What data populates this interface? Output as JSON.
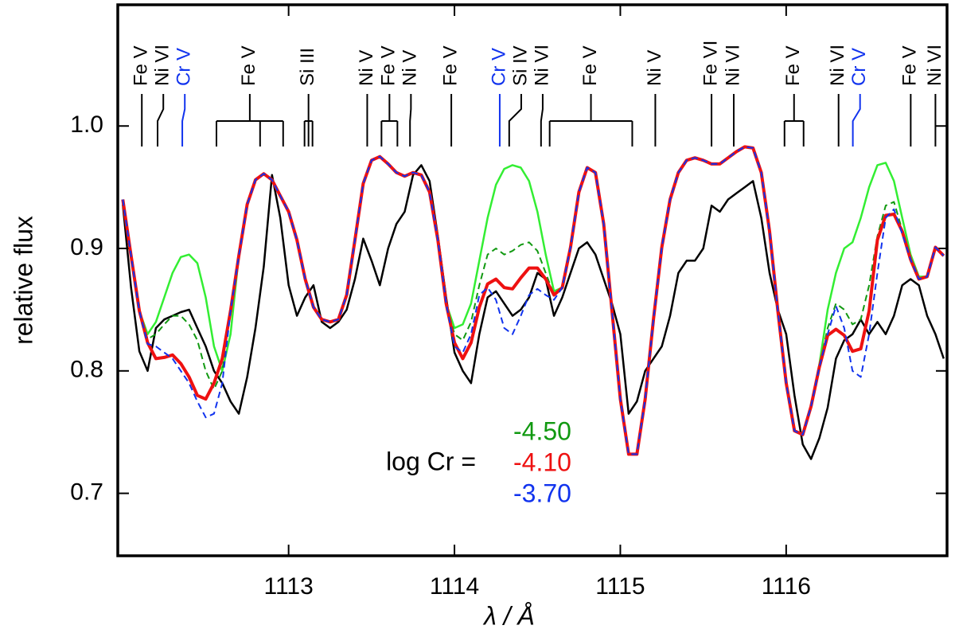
{
  "chart_data": {
    "type": "line",
    "xlabel": "λ / Å",
    "ylabel": "relative flux",
    "legend_title": "log Cr =",
    "xlim": [
      1111.97,
      1116.97
    ],
    "ylim": [
      0.649,
      1.099
    ],
    "xticks": [
      1113,
      1114,
      1115,
      1116
    ],
    "yticks": [
      0.7,
      0.8,
      0.9,
      {
        "value": 1,
        "label": "1.0"
      }
    ],
    "grid": false,
    "x": [
      1112.0,
      1112.05,
      1112.1,
      1112.15,
      1112.2,
      1112.25,
      1112.3,
      1112.35,
      1112.4,
      1112.45,
      1112.5,
      1112.55,
      1112.6,
      1112.65,
      1112.7,
      1112.75,
      1112.8,
      1112.85,
      1112.9,
      1112.95,
      1113.0,
      1113.05,
      1113.1,
      1113.15,
      1113.2,
      1113.25,
      1113.3,
      1113.35,
      1113.4,
      1113.45,
      1113.5,
      1113.55,
      1113.6,
      1113.65,
      1113.7,
      1113.75,
      1113.8,
      1113.85,
      1113.9,
      1113.95,
      1114.0,
      1114.05,
      1114.1,
      1114.15,
      1114.2,
      1114.25,
      1114.3,
      1114.35,
      1114.4,
      1114.45,
      1114.5,
      1114.55,
      1114.6,
      1114.65,
      1114.7,
      1114.75,
      1114.8,
      1114.85,
      1114.9,
      1114.95,
      1115.0,
      1115.05,
      1115.1,
      1115.15,
      1115.2,
      1115.25,
      1115.3,
      1115.35,
      1115.4,
      1115.45,
      1115.5,
      1115.55,
      1115.6,
      1115.65,
      1115.7,
      1115.75,
      1115.8,
      1115.85,
      1115.9,
      1115.95,
      1116.0,
      1116.05,
      1116.1,
      1116.15,
      1116.2,
      1116.25,
      1116.3,
      1116.35,
      1116.4,
      1116.45,
      1116.5,
      1116.55,
      1116.6,
      1116.65,
      1116.7,
      1116.75,
      1116.8,
      1116.85,
      1116.9,
      1116.95
    ],
    "series": [
      {
        "color": "#000000",
        "width": 2.5,
        "dashed": false,
        "values": [
          0.936,
          0.868,
          0.816,
          0.8,
          0.835,
          0.842,
          0.845,
          0.848,
          0.85,
          0.835,
          0.82,
          0.8,
          0.79,
          0.775,
          0.765,
          0.795,
          0.835,
          0.885,
          0.96,
          0.925,
          0.87,
          0.845,
          0.86,
          0.87,
          0.84,
          0.835,
          0.84,
          0.85,
          0.875,
          0.908,
          0.89,
          0.87,
          0.9,
          0.92,
          0.93,
          0.96,
          0.968,
          0.955,
          0.91,
          0.86,
          0.815,
          0.8,
          0.79,
          0.83,
          0.86,
          0.865,
          0.855,
          0.845,
          0.85,
          0.86,
          0.88,
          0.875,
          0.845,
          0.86,
          0.88,
          0.9,
          0.905,
          0.895,
          0.875,
          0.855,
          0.83,
          0.765,
          0.775,
          0.8,
          0.81,
          0.82,
          0.845,
          0.88,
          0.89,
          0.89,
          0.9,
          0.935,
          0.93,
          0.94,
          0.945,
          0.95,
          0.955,
          0.925,
          0.88,
          0.85,
          0.83,
          0.78,
          0.74,
          0.728,
          0.745,
          0.77,
          0.81,
          0.825,
          0.83,
          0.842,
          0.83,
          0.84,
          0.83,
          0.845,
          0.87,
          0.875,
          0.87,
          0.845,
          0.83,
          0.81
        ]
      },
      {
        "color": "#33ee33",
        "width": 2.5,
        "dashed": false,
        "values": [
          0.94,
          0.894,
          0.849,
          0.83,
          0.84,
          0.86,
          0.88,
          0.893,
          0.895,
          0.888,
          0.86,
          0.82,
          0.8,
          0.83,
          0.894,
          0.936,
          0.956,
          0.961,
          0.956,
          0.943,
          0.93,
          0.907,
          0.875,
          0.852,
          0.842,
          0.84,
          0.842,
          0.862,
          0.907,
          0.953,
          0.972,
          0.975,
          0.969,
          0.962,
          0.959,
          0.962,
          0.96,
          0.946,
          0.907,
          0.855,
          0.835,
          0.838,
          0.855,
          0.89,
          0.925,
          0.952,
          0.965,
          0.968,
          0.966,
          0.955,
          0.93,
          0.895,
          0.865,
          0.868,
          0.901,
          0.946,
          0.966,
          0.962,
          0.92,
          0.849,
          0.777,
          0.732,
          0.732,
          0.777,
          0.842,
          0.901,
          0.94,
          0.962,
          0.972,
          0.974,
          0.972,
          0.969,
          0.969,
          0.974,
          0.979,
          0.983,
          0.982,
          0.962,
          0.914,
          0.849,
          0.79,
          0.751,
          0.748,
          0.771,
          0.805,
          0.85,
          0.88,
          0.9,
          0.905,
          0.925,
          0.95,
          0.968,
          0.97,
          0.955,
          0.925,
          0.895,
          0.877,
          0.877,
          0.901,
          0.894
        ]
      },
      {
        "name": "-4.50",
        "color": "#119911",
        "width": 2,
        "dashed": true,
        "values": [
          0.94,
          0.894,
          0.849,
          0.826,
          0.83,
          0.838,
          0.845,
          0.845,
          0.838,
          0.825,
          0.8,
          0.785,
          0.8,
          0.849,
          0.894,
          0.936,
          0.956,
          0.961,
          0.956,
          0.943,
          0.93,
          0.907,
          0.875,
          0.852,
          0.842,
          0.84,
          0.842,
          0.862,
          0.907,
          0.953,
          0.972,
          0.975,
          0.969,
          0.962,
          0.959,
          0.962,
          0.96,
          0.946,
          0.907,
          0.855,
          0.83,
          0.825,
          0.84,
          0.87,
          0.895,
          0.9,
          0.895,
          0.898,
          0.903,
          0.905,
          0.898,
          0.88,
          0.862,
          0.868,
          0.901,
          0.946,
          0.966,
          0.962,
          0.92,
          0.849,
          0.777,
          0.732,
          0.732,
          0.777,
          0.842,
          0.901,
          0.94,
          0.962,
          0.972,
          0.974,
          0.972,
          0.969,
          0.969,
          0.974,
          0.979,
          0.983,
          0.982,
          0.962,
          0.914,
          0.849,
          0.79,
          0.751,
          0.748,
          0.771,
          0.803,
          0.835,
          0.855,
          0.85,
          0.838,
          0.842,
          0.87,
          0.91,
          0.935,
          0.938,
          0.915,
          0.891,
          0.875,
          0.877,
          0.901,
          0.894
        ]
      },
      {
        "name": "-4.10",
        "color": "#ee1111",
        "width": 4,
        "dashed": false,
        "values": [
          0.94,
          0.894,
          0.849,
          0.823,
          0.81,
          0.811,
          0.813,
          0.806,
          0.795,
          0.78,
          0.777,
          0.79,
          0.81,
          0.849,
          0.894,
          0.936,
          0.956,
          0.961,
          0.956,
          0.943,
          0.93,
          0.907,
          0.875,
          0.852,
          0.842,
          0.84,
          0.842,
          0.862,
          0.907,
          0.953,
          0.972,
          0.975,
          0.969,
          0.962,
          0.959,
          0.962,
          0.96,
          0.946,
          0.907,
          0.855,
          0.823,
          0.81,
          0.823,
          0.852,
          0.871,
          0.875,
          0.868,
          0.867,
          0.876,
          0.884,
          0.884,
          0.875,
          0.862,
          0.868,
          0.901,
          0.946,
          0.966,
          0.962,
          0.92,
          0.849,
          0.777,
          0.732,
          0.732,
          0.777,
          0.842,
          0.901,
          0.94,
          0.962,
          0.972,
          0.974,
          0.972,
          0.969,
          0.969,
          0.974,
          0.979,
          0.983,
          0.982,
          0.962,
          0.914,
          0.849,
          0.79,
          0.751,
          0.748,
          0.771,
          0.803,
          0.829,
          0.834,
          0.829,
          0.816,
          0.818,
          0.849,
          0.907,
          0.927,
          0.928,
          0.914,
          0.891,
          0.875,
          0.877,
          0.901,
          0.894
        ]
      },
      {
        "name": "-3.70",
        "color": "#1133ee",
        "width": 2,
        "dashed": true,
        "values": [
          0.94,
          0.894,
          0.849,
          0.822,
          0.82,
          0.815,
          0.81,
          0.8,
          0.79,
          0.775,
          0.762,
          0.765,
          0.79,
          0.849,
          0.894,
          0.936,
          0.956,
          0.961,
          0.956,
          0.943,
          0.93,
          0.907,
          0.875,
          0.852,
          0.842,
          0.84,
          0.842,
          0.862,
          0.907,
          0.953,
          0.972,
          0.975,
          0.969,
          0.962,
          0.959,
          0.962,
          0.96,
          0.946,
          0.907,
          0.855,
          0.82,
          0.815,
          0.83,
          0.862,
          0.868,
          0.858,
          0.835,
          0.83,
          0.845,
          0.862,
          0.867,
          0.862,
          0.858,
          0.868,
          0.901,
          0.946,
          0.966,
          0.962,
          0.92,
          0.849,
          0.777,
          0.732,
          0.732,
          0.777,
          0.842,
          0.901,
          0.94,
          0.962,
          0.972,
          0.974,
          0.972,
          0.969,
          0.969,
          0.974,
          0.979,
          0.983,
          0.982,
          0.962,
          0.914,
          0.849,
          0.79,
          0.751,
          0.748,
          0.771,
          0.803,
          0.83,
          0.853,
          0.835,
          0.8,
          0.795,
          0.83,
          0.88,
          0.925,
          0.932,
          0.912,
          0.891,
          0.875,
          0.877,
          0.901,
          0.894
        ]
      }
    ],
    "line_ids": [
      {
        "label": "Fe V",
        "color": "#000000",
        "lines": [
          1112.115
        ]
      },
      {
        "label": "Ni VI",
        "color": "#000000",
        "lines": [
          1112.21
        ]
      },
      {
        "label": "Cr V",
        "color": "#1133ee",
        "lines": [
          1112.359
        ]
      },
      {
        "label": "Fe V",
        "color": "#000000",
        "lines": [
          1112.565,
          1112.828,
          1112.967
        ]
      },
      {
        "label": "Si III",
        "color": "#000000",
        "lines": [
          1113.096,
          1113.12,
          1113.144
        ]
      },
      {
        "label": "Ni V",
        "color": "#000000",
        "lines": [
          1113.474
        ]
      },
      {
        "label": "Fe V",
        "color": "#000000",
        "lines": [
          1113.56,
          1113.656
        ]
      },
      {
        "label": "Ni V",
        "color": "#000000",
        "lines": [
          1113.732
        ]
      },
      {
        "label": "Fe V",
        "color": "#000000",
        "lines": [
          1113.981
        ]
      },
      {
        "label": "Cr V",
        "color": "#1133ee",
        "lines": [
          1114.273
        ]
      },
      {
        "label": "Si IV",
        "color": "#000000",
        "lines": [
          1114.33
        ]
      },
      {
        "label": "Ni VI",
        "color": "#000000",
        "lines": [
          1114.522
        ]
      },
      {
        "label": "Fe V",
        "color": "#000000",
        "lines": [
          1114.574,
          1115.072
        ]
      },
      {
        "label": "Ni V",
        "color": "#000000",
        "lines": [
          1115.211
        ]
      },
      {
        "label": "Fe VI",
        "color": "#000000",
        "lines": [
          1115.55
        ]
      },
      {
        "label": "Ni VI",
        "color": "#000000",
        "lines": [
          1115.684
        ]
      },
      {
        "label": "Fe V",
        "color": "#000000",
        "lines": [
          1115.99,
          1116.105
        ]
      },
      {
        "label": "Ni VI",
        "color": "#000000",
        "lines": [
          1116.316
        ]
      },
      {
        "label": "Cr V",
        "color": "#1133ee",
        "lines": [
          1116.402
        ]
      },
      {
        "label": "Fe V",
        "color": "#000000",
        "lines": [
          1116.751
        ]
      },
      {
        "label": "Ni VI",
        "color": "#000000",
        "lines": [
          1116.9
        ]
      }
    ]
  }
}
